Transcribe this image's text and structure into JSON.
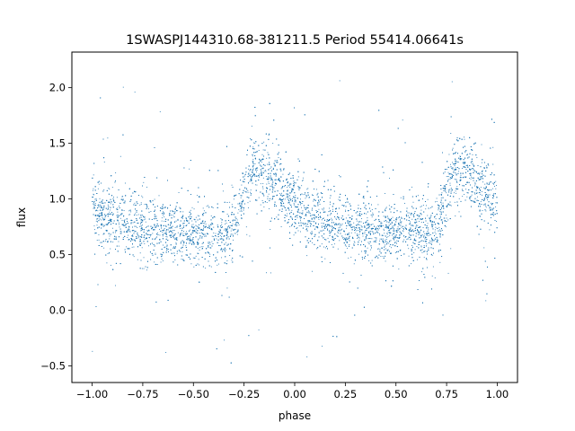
{
  "chart_data": {
    "type": "scatter",
    "title": "1SWASPJ144310.68-381211.5 Period 55414.06641s",
    "xlabel": "phase",
    "ylabel": "flux",
    "xlim": [
      -1.1,
      1.1
    ],
    "ylim": [
      -0.65,
      2.32
    ],
    "x_ticks": [
      -1.0,
      -0.75,
      -0.5,
      -0.25,
      0.0,
      0.25,
      0.5,
      0.75,
      1.0
    ],
    "x_tick_labels": [
      "−1.00",
      "−0.75",
      "−0.50",
      "−0.25",
      "0.00",
      "0.25",
      "0.50",
      "0.75",
      "1.00"
    ],
    "y_ticks": [
      -0.5,
      0.0,
      0.5,
      1.0,
      1.5,
      2.0
    ],
    "y_tick_labels": [
      "−0.5",
      "0.0",
      "0.5",
      "1.0",
      "1.5",
      "2.0"
    ],
    "grid": false,
    "point_color": "#1f77b4",
    "series": [
      {
        "phase_range": [
          -1.0,
          1.0
        ],
        "period": 1.0,
        "light_curve": {
          "phase": [
            0.0,
            0.1,
            0.2,
            0.3,
            0.4,
            0.5,
            0.6,
            0.65,
            0.7,
            0.75,
            0.8,
            0.85,
            0.9,
            1.0
          ],
          "flux": [
            0.93,
            0.83,
            0.77,
            0.73,
            0.71,
            0.7,
            0.7,
            0.68,
            0.71,
            1.05,
            1.3,
            1.27,
            1.15,
            0.93
          ]
        },
        "scatter_sigma": 0.13,
        "flux_outlier_range": [
          -0.55,
          2.2
        ]
      }
    ]
  }
}
